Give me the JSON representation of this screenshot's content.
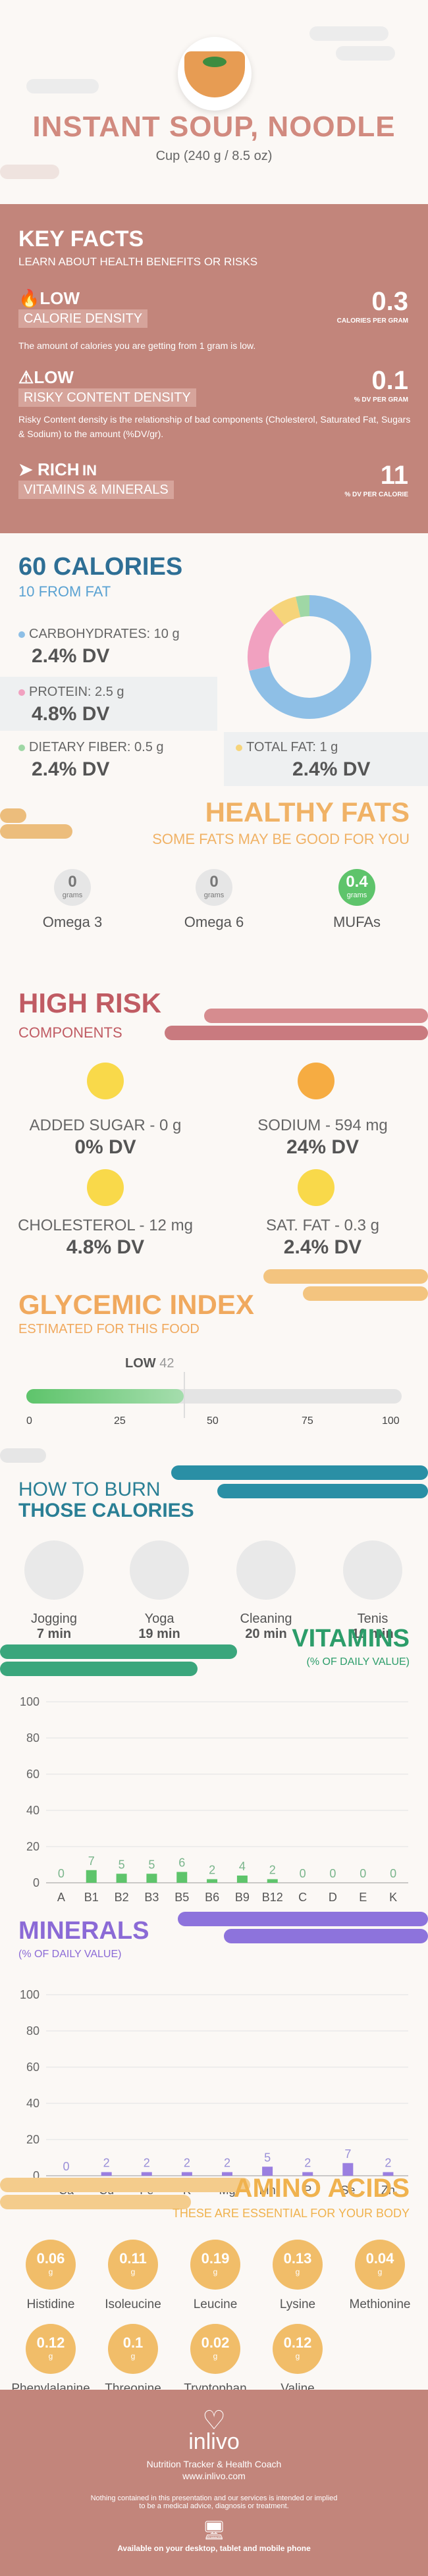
{
  "header": {
    "title": "INSTANT SOUP, NOODLE",
    "serving": "Cup (240 g / 8.5 oz)"
  },
  "key_facts": {
    "title": "KEY FACTS",
    "subtitle": "LEARN ABOUT HEALTH BENEFITS OR RISKS",
    "items": [
      {
        "badge": "LOW",
        "label": "CALORIE DENSITY",
        "value": "0.3",
        "unit": "CALORIES PER GRAM",
        "description": "The amount of calories you are getting from 1 gram is low."
      },
      {
        "badge": "LOW",
        "label": "RISKY CONTENT DENSITY",
        "value": "0.1",
        "unit": "% DV PER GRAM",
        "description": "Risky Content density is the relationship of bad components (Cholesterol, Saturated Fat, Sugars & Sodium) to the amount (%DV/gr)."
      },
      {
        "badge": "RICH",
        "badge_suffix": "IN",
        "label": "VITAMINS & MINERALS",
        "value": "11",
        "unit": "% DV PER CALORIE",
        "description": ""
      }
    ]
  },
  "calories": {
    "title": "60 CALORIES",
    "subtitle": "10 FROM FAT",
    "nutrients": [
      {
        "label": "CARBOHYDRATES: 10 g",
        "dv": "2.4% DV",
        "color": "#8ebfe6"
      },
      {
        "label": "PROTEIN: 2.5 g",
        "dv": "4.8% DV",
        "color": "#f1a1c0"
      },
      {
        "label": "DIETARY FIBER: 0.5 g",
        "dv": "2.4% DV",
        "color": "#9fd7a5"
      },
      {
        "label": "TOTAL FAT: 1 g",
        "dv": "2.4% DV",
        "color": "#f6d47a"
      }
    ]
  },
  "healthy_fats": {
    "title": "HEALTHY FATS",
    "subtitle": "SOME FATS MAY BE GOOD FOR YOU",
    "items": [
      {
        "value": "0",
        "unit": "grams",
        "name": "Omega 3",
        "color": "#e6e6e6"
      },
      {
        "value": "0",
        "unit": "grams",
        "name": "Omega 6",
        "color": "#e6e6e6"
      },
      {
        "value": "0.4",
        "unit": "grams",
        "name": "MUFAs",
        "color": "#5ec46b"
      }
    ]
  },
  "high_risk": {
    "title": "HIGH RISK",
    "subtitle": "COMPONENTS",
    "items": [
      {
        "name": "ADDED SUGAR - 0 g",
        "dv": "0% DV",
        "color": "#f9d94a"
      },
      {
        "name": "SODIUM - 594 mg",
        "dv": "24% DV",
        "color": "#f6ac42"
      },
      {
        "name": "CHOLESTEROL - 12 mg",
        "dv": "4.8% DV",
        "color": "#f9d94a"
      },
      {
        "name": "SAT. FAT - 0.3 g",
        "dv": "2.4% DV",
        "color": "#f9d94a"
      }
    ]
  },
  "glycemic": {
    "title": "GLYCEMIC INDEX",
    "subtitle": "ESTIMATED FOR THIS FOOD",
    "level": "LOW",
    "value": 42,
    "ticks": [
      "0",
      "25",
      "50",
      "75",
      "100"
    ]
  },
  "burn": {
    "title1": "HOW TO BURN",
    "title2": "THOSE CALORIES",
    "items": [
      {
        "name": "Jogging",
        "duration": "7 min",
        "icon": "jogging-icon"
      },
      {
        "name": "Yoga",
        "duration": "19 min",
        "icon": "yoga-icon"
      },
      {
        "name": "Cleaning",
        "duration": "20 min",
        "icon": "cleaning-icon"
      },
      {
        "name": "Tenis",
        "duration": "10 min",
        "icon": "tennis-icon"
      }
    ]
  },
  "vitamins": {
    "title": "VITAMINS",
    "subtitle": "(% OF DAILY VALUE)"
  },
  "minerals": {
    "title": "MINERALS",
    "subtitle": "(% OF DAILY VALUE)"
  },
  "amino": {
    "title": "AMINO ACIDS",
    "subtitle": "THESE ARE ESSENTIAL FOR YOUR BODY",
    "unit": "g",
    "items": [
      {
        "name": "Histidine",
        "value": "0.06"
      },
      {
        "name": "Isoleucine",
        "value": "0.11"
      },
      {
        "name": "Leucine",
        "value": "0.19"
      },
      {
        "name": "Lysine",
        "value": "0.13"
      },
      {
        "name": "Methionine",
        "value": "0.04"
      },
      {
        "name": "Phenylalanine",
        "value": "0.12"
      },
      {
        "name": "Threonine",
        "value": "0.1"
      },
      {
        "name": "Tryptophan",
        "value": "0.02"
      },
      {
        "name": "Valine",
        "value": "0.12"
      }
    ]
  },
  "footer": {
    "brand": "inlivo",
    "tagline": "Nutrition Tracker & Health Coach",
    "url": "www.inlivo.com",
    "disclaimer1": "Nothing contained in this presentation and our services is intended or implied",
    "disclaimer2": "to be a medical advice, diagnosis or treatment.",
    "availability": "Available on your desktop, tablet and mobile phone"
  },
  "chart_data": [
    {
      "type": "pie",
      "title": "60 CALORIES",
      "categories": [
        "Carbohydrates",
        "Protein",
        "Dietary Fiber",
        "Total Fat"
      ],
      "values": [
        10,
        2.5,
        0.5,
        1
      ],
      "colors": [
        "#8ebfe6",
        "#f1a1c0",
        "#9fd7a5",
        "#f6d47a"
      ]
    },
    {
      "type": "bar",
      "title": "VITAMINS",
      "categories": [
        "A",
        "B1",
        "B2",
        "B3",
        "B5",
        "B6",
        "B9",
        "B12",
        "C",
        "D",
        "E",
        "K"
      ],
      "values": [
        0,
        7,
        5,
        5,
        6,
        2,
        4,
        2,
        0,
        0,
        0,
        0
      ],
      "ylim": [
        0,
        100
      ],
      "yticks": [
        0,
        20,
        40,
        60,
        80,
        100
      ],
      "color": "#5ec46b",
      "label_color": "#7ab58c"
    },
    {
      "type": "bar",
      "title": "MINERALS",
      "categories": [
        "Ca",
        "Cu",
        "Fe",
        "K",
        "Mg",
        "Mn",
        "P",
        "Se",
        "Zn"
      ],
      "values": [
        0,
        2,
        2,
        2,
        2,
        5,
        2,
        7,
        2
      ],
      "ylim": [
        0,
        100
      ],
      "yticks": [
        0,
        20,
        40,
        60,
        80,
        100
      ],
      "color": "#9a7fe0",
      "label_color": "#9a8fd8"
    }
  ]
}
